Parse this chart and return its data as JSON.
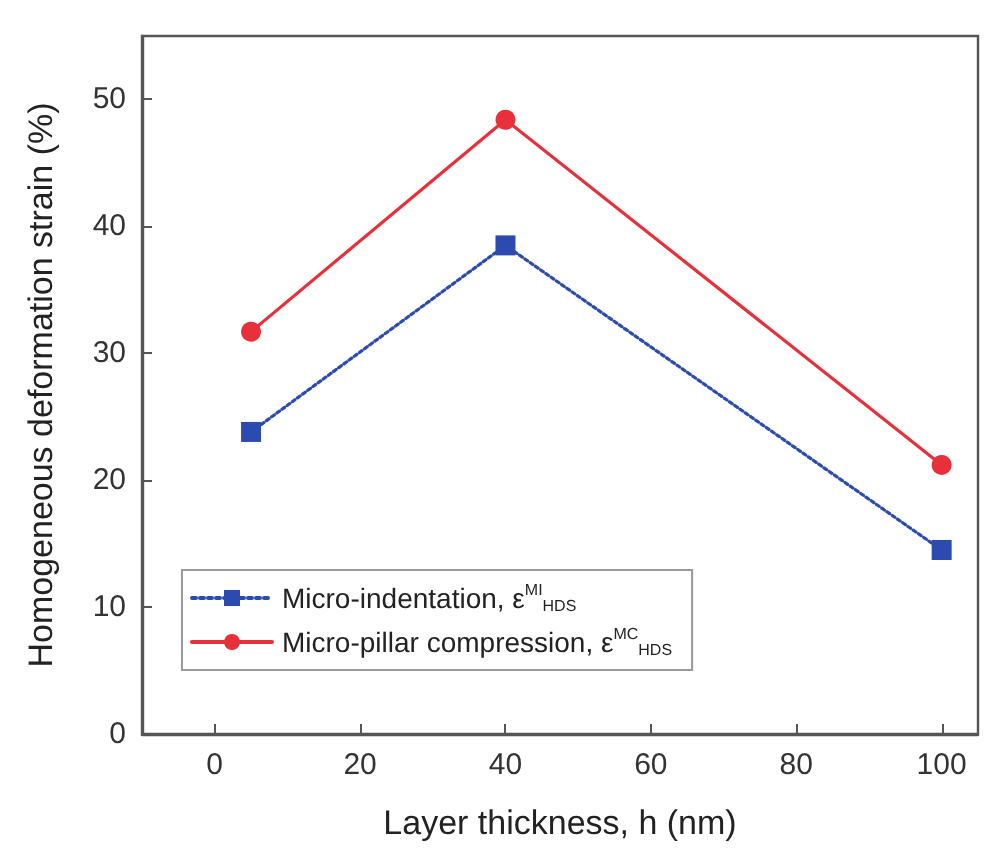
{
  "chart_data": {
    "type": "line",
    "xlabel": "Layer thickness, h (nm)",
    "ylabel": "Homogeneous deformation strain (%)",
    "x": [
      5,
      40,
      100
    ],
    "series": [
      {
        "name": "Micro-indentation, ε$^{MI}$$_{HDS}$",
        "color": "#2b4bb0",
        "values": [
          23.8,
          38.5,
          14.5
        ],
        "marker": "square",
        "line_style": "dotted"
      },
      {
        "name": "Micro-pillar compression, ε$^{MC}$$_{HDS}$",
        "color": "#e8303a",
        "values": [
          31.7,
          48.4,
          21.2
        ],
        "marker": "circle",
        "line_style": "solid"
      }
    ],
    "xlim": [
      -10,
      105
    ],
    "xticks": [
      0,
      20,
      40,
      60,
      80,
      100
    ],
    "ylim": [
      0,
      55
    ],
    "yticks": [
      0,
      10,
      20,
      30,
      40,
      50
    ],
    "grid": false,
    "legend": "bottom left"
  }
}
